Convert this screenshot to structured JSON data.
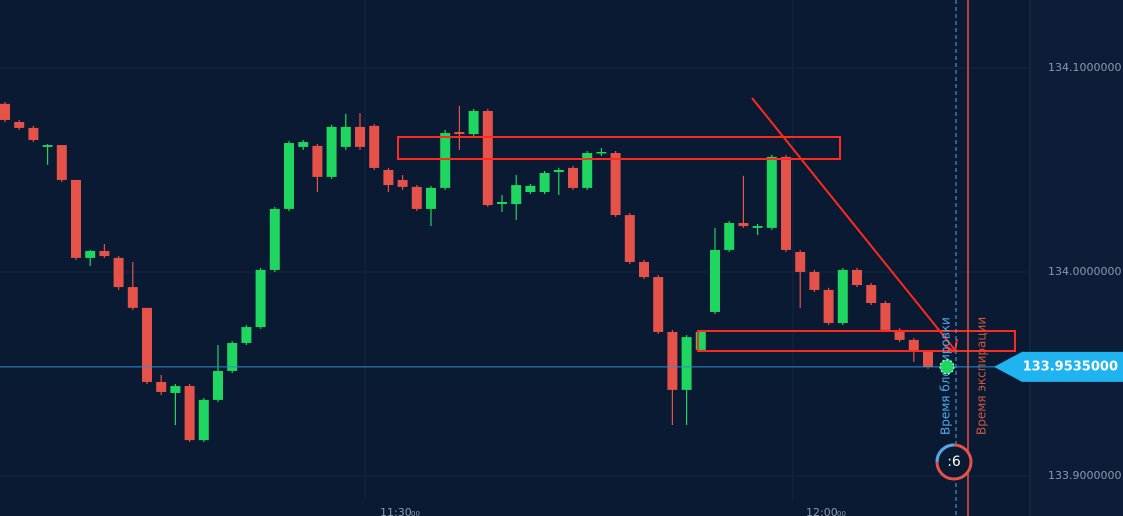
{
  "chart_data": {
    "type": "candlestick",
    "up_color": "#1ed660",
    "down_color": "#e4524a",
    "ylim": [
      133.8804,
      134.1333
    ],
    "yticks": [
      {
        "value": 133.9,
        "label": "133.9000000"
      },
      {
        "value": 134.0,
        "label": "134.0000000"
      },
      {
        "value": 134.1,
        "label": "134.1000000"
      }
    ],
    "grid": true,
    "x_labels": [
      {
        "time": "11:30",
        "seconds": "00"
      },
      {
        "time": "12:00",
        "seconds": "00"
      }
    ],
    "open": [
      134.0824,
      134.0735,
      134.0706,
      134.0613,
      134.0622,
      134.0451,
      134.0069,
      134.0103,
      134.0069,
      133.9926,
      133.9824,
      133.9461,
      133.9407,
      133.9441,
      133.9176,
      133.9373,
      133.9515,
      133.9652,
      133.973,
      134.001,
      134.0309,
      134.0613,
      134.0618,
      134.0466,
      134.0613,
      134.0711,
      134.0716,
      134.05,
      134.0451,
      134.0417,
      134.0309,
      134.0412,
      134.0686,
      134.0676,
      134.0789,
      134.0333,
      134.0333,
      134.0392,
      134.0392,
      134.049,
      134.051,
      134.0412,
      134.0583,
      134.0583,
      134.0279,
      134.0049,
      133.9975,
      133.9706,
      133.9422,
      133.9618,
      133.9804,
      134.0108,
      134.024,
      134.0216,
      134.0216,
      134.0564,
      134.0098,
      134.0,
      133.9912,
      133.975,
      134.001,
      133.9936,
      133.9848,
      133.9716,
      133.9667,
      133.9608
    ],
    "high": [
      134.0833,
      134.0745,
      134.0716,
      134.0627,
      134.0622,
      134.0451,
      134.0108,
      134.0137,
      134.0078,
      134.0049,
      133.9824,
      133.9495,
      133.9451,
      133.9451,
      133.9382,
      133.9642,
      133.9662,
      133.974,
      134.002,
      134.0319,
      134.0642,
      134.0647,
      134.0627,
      134.0721,
      134.0775,
      134.0779,
      134.0725,
      134.051,
      134.0475,
      134.0426,
      134.0422,
      134.0696,
      134.0814,
      134.0799,
      134.0799,
      134.0377,
      134.0475,
      134.0431,
      134.0495,
      134.051,
      134.052,
      134.0593,
      134.0608,
      134.0593,
      134.0289,
      134.0059,
      133.9985,
      133.9716,
      133.9691,
      133.9716,
      134.0216,
      134.025,
      134.0471,
      134.0235,
      134.0574,
      134.0574,
      134.0108,
      134.001,
      133.9922,
      134.002,
      134.002,
      133.9946,
      133.9858,
      133.9725,
      133.9676,
      133.9618
    ],
    "low": [
      134.0735,
      134.0696,
      134.0637,
      134.0525,
      134.0441,
      134.0059,
      134.0029,
      134.0069,
      133.9912,
      133.9814,
      133.9451,
      133.9397,
      133.925,
      133.9167,
      133.9167,
      133.9363,
      133.9505,
      133.9642,
      133.9721,
      134.0,
      134.0299,
      134.0598,
      134.0392,
      134.0456,
      134.0598,
      134.0598,
      134.05,
      134.0392,
      134.0402,
      134.0299,
      134.0225,
      134.0402,
      134.0598,
      134.0667,
      134.0319,
      134.0294,
      134.0255,
      134.0382,
      134.0382,
      134.0377,
      134.0402,
      134.0402,
      134.0569,
      134.027,
      134.0039,
      133.9966,
      133.9696,
      133.925,
      133.925,
      133.9608,
      133.9794,
      134.0098,
      134.0216,
      134.0181,
      134.0206,
      134.0098,
      133.9824,
      133.9902,
      133.974,
      133.974,
      133.9926,
      133.9838,
      133.9706,
      133.9657,
      133.9559,
      133.9525
    ],
    "close": [
      134.0745,
      134.0706,
      134.0647,
      134.0622,
      134.0451,
      134.0069,
      134.0103,
      134.0078,
      133.9926,
      133.9824,
      133.9461,
      133.9412,
      133.9441,
      133.9176,
      133.9373,
      133.9515,
      133.9652,
      133.973,
      134.001,
      134.0309,
      134.0632,
      134.0637,
      134.0466,
      134.0711,
      134.0711,
      134.0613,
      134.051,
      134.0426,
      134.0417,
      134.0309,
      134.0412,
      134.0681,
      134.0676,
      134.0789,
      134.0328,
      134.0343,
      134.0426,
      134.0422,
      134.0485,
      134.05,
      134.0412,
      134.0583,
      134.0588,
      134.0279,
      134.0049,
      133.9975,
      133.9706,
      133.9422,
      133.9681,
      133.9706,
      134.0108,
      134.024,
      134.0225,
      134.0225,
      134.0564,
      134.0108,
      134.0,
      133.9912,
      133.975,
      134.001,
      133.9936,
      133.9848,
      133.9716,
      133.9667,
      133.9608,
      133.9535
    ],
    "current_price": {
      "value": 133.9535,
      "label": "133.9535000"
    },
    "timer": ":6",
    "lock_label": "Время блокировки",
    "expiry_label": "Время экспирации"
  }
}
